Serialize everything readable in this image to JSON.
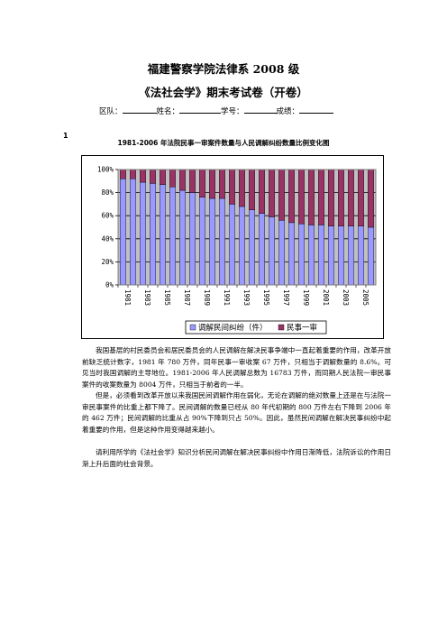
{
  "header": {
    "title": "福建警察学院法律系 2008 级",
    "subtitle": "《法社会学》期末考试卷（开卷）",
    "fields": [
      "区队：",
      "姓名：",
      "学号：",
      "成绩："
    ]
  },
  "question": {
    "number": "1",
    "chart_title": "1981-2006 年法院民事一审案件数量与人民调解纠纷数量比例变化图"
  },
  "chart_data": {
    "type": "bar",
    "stacked": "percent",
    "title": "1981-2006 年法院民事一审案件数量与人民调解纠纷数量比例变化图",
    "categories": [
      "1981",
      "1982",
      "1983",
      "1984",
      "1985",
      "1986",
      "1987",
      "1988",
      "1989",
      "1990",
      "1991",
      "1992",
      "1993",
      "1994",
      "1995",
      "1996",
      "1997",
      "1998",
      "1999",
      "2000",
      "2001",
      "2002",
      "2003",
      "2004",
      "2005",
      "2006"
    ],
    "tick_labels": [
      "1981",
      "1983",
      "1985",
      "1987",
      "1989",
      "1991",
      "1993",
      "1995",
      "1997",
      "1999",
      "2001",
      "2003",
      "2005"
    ],
    "y_ticks": [
      "0%",
      "20%",
      "40%",
      "60%",
      "80%",
      "100%"
    ],
    "ylim": [
      0,
      100
    ],
    "grid": true,
    "legend": "bottom",
    "series": [
      {
        "name": "调解民间纠纷（件）",
        "color": "#9999ff",
        "values": [
          92,
          92,
          89,
          88,
          87,
          85,
          82,
          80,
          76,
          75,
          75,
          70,
          68,
          65,
          62,
          59,
          56,
          54,
          53,
          52,
          52,
          51,
          51,
          51,
          51,
          50
        ]
      },
      {
        "name": "民事一审",
        "color": "#993366",
        "values": [
          8,
          8,
          11,
          12,
          13,
          15,
          18,
          20,
          24,
          25,
          25,
          30,
          32,
          35,
          38,
          41,
          44,
          46,
          47,
          48,
          48,
          49,
          49,
          49,
          49,
          50
        ]
      }
    ]
  },
  "paragraphs": [
    "我国基层的村民委员会和居民委员会的人民调解在解决民事争端中一直起着重要的作用，改革开放前缺乏统计数字，1981 年 780 万件，同年民事一审收案 67 万件，只相当于调解数量的 8.6%。可见当时我国调解的主导地位。1981-2006 年人民调解总数为 16783 万件，而同期人民法院一审民事案件的收案数量为 8004 万件，只相当于前者的一半。",
    "但是，必须看到改革开放以来我国民间调解作用在弱化，无论在调解的绝对数量上还是在与法院一审民事案件的比重上都下降了。民间调解的数量已经从 80 年代初期的 800 万件左右下降到 2006 年的 462 万件；民间调解的比重从占 90%下降到只占 50%。因此，虽然民间调解在解决民事纠纷中起着重要的作用，但是这种作用变得越来越小。",
    "请利用所学的《法社会学》知识分析民间调解在解决民事纠纷中作用日渐降低，法院诉讼的作用日渐上升后面的社会背景。"
  ]
}
